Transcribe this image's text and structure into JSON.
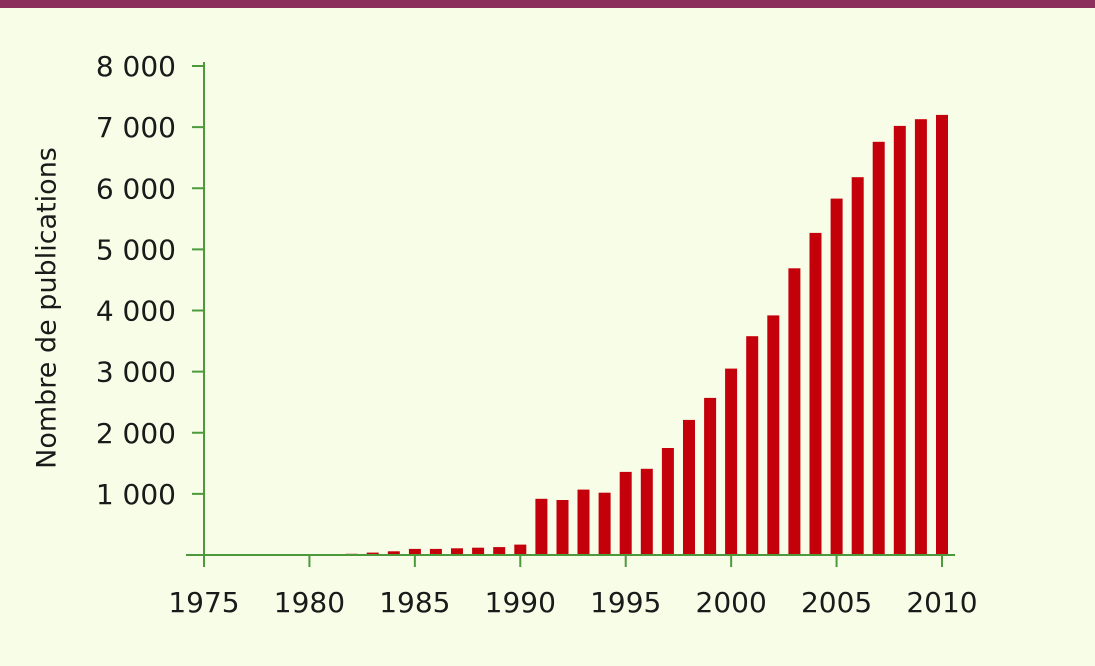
{
  "colors": {
    "background": "#f8fde8",
    "top_band": "#8c2f5c",
    "bar": "#c4000b",
    "axis": "#4d9a3d",
    "text": "#1a1a1a"
  },
  "chart_data": {
    "type": "bar",
    "title": "",
    "xlabel": "",
    "ylabel": "Nombre de publications",
    "xlim": [
      1975,
      2010
    ],
    "ylim": [
      0,
      8000
    ],
    "x_ticks": [
      1975,
      1980,
      1985,
      1990,
      1995,
      2000,
      2005,
      2010
    ],
    "x_tick_labels": [
      "1975",
      "1980",
      "1985",
      "1990",
      "1995",
      "2000",
      "2005",
      "2010"
    ],
    "y_ticks": [
      1000,
      2000,
      3000,
      4000,
      5000,
      6000,
      7000,
      8000
    ],
    "y_tick_labels": [
      "1 000",
      "2 000",
      "3 000",
      "4 000",
      "5 000",
      "6 000",
      "7 000",
      "8 000"
    ],
    "grid": false,
    "categories": [
      1982,
      1983,
      1984,
      1985,
      1986,
      1987,
      1988,
      1989,
      1990,
      1991,
      1992,
      1993,
      1994,
      1995,
      1996,
      1997,
      1998,
      1999,
      2000,
      2001,
      2002,
      2003,
      2004,
      2005,
      2006,
      2007,
      2008,
      2009,
      2010
    ],
    "values": [
      20,
      40,
      60,
      100,
      100,
      110,
      120,
      130,
      170,
      920,
      900,
      1070,
      1020,
      1360,
      1410,
      1750,
      2210,
      2570,
      3050,
      3580,
      3920,
      4690,
      5270,
      5830,
      6180,
      6760,
      7020,
      7130,
      7200
    ]
  }
}
